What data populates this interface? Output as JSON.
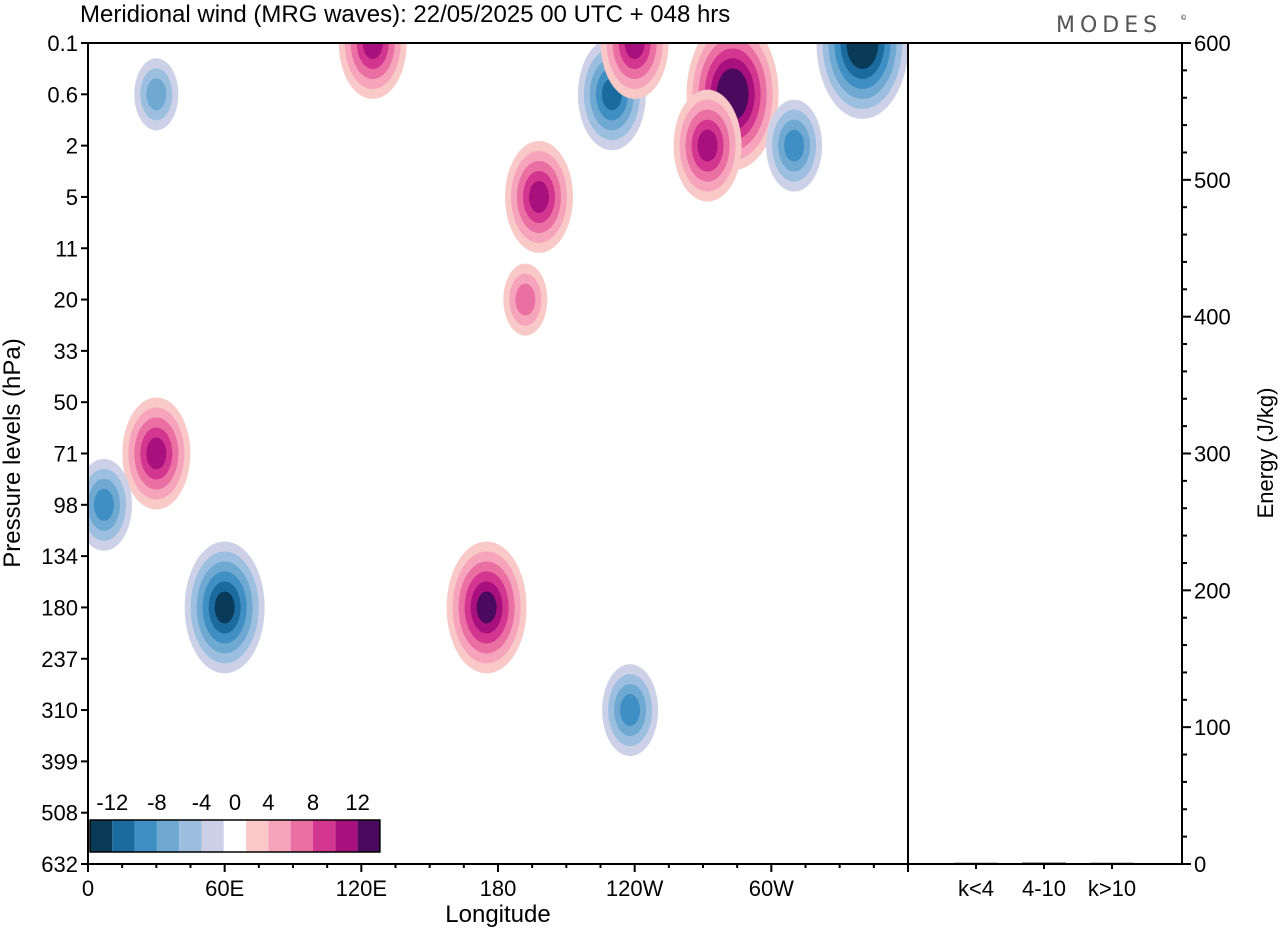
{
  "chart_data": [
    {
      "type": "heatmap",
      "title": "Meridional wind (MRG waves):  22/05/2025  00 UTC  + 048 hrs",
      "xlabel": "Longitude",
      "ylabel": "Pressure levels (hPa)",
      "x_ticks": [
        "0",
        "60E",
        "120E",
        "180",
        "120W",
        "60W"
      ],
      "x_tick_values": [
        0,
        60,
        120,
        180,
        240,
        300
      ],
      "xlim": [
        0,
        360
      ],
      "y_ticks": [
        "0.1",
        "0.6",
        "2",
        "5",
        "11",
        "20",
        "33",
        "50",
        "71",
        "98",
        "134",
        "180",
        "237",
        "310",
        "399",
        "508",
        "632"
      ],
      "colorbar": {
        "labels": [
          "-12",
          "-8",
          "-4",
          "0",
          "4",
          "8",
          "12"
        ],
        "label_values": [
          -12,
          -8,
          -4,
          0,
          4,
          8,
          12
        ],
        "levels": [
          -14,
          -12,
          -10,
          -8,
          -6,
          -4,
          -2,
          2,
          4,
          6,
          8,
          10,
          12,
          14
        ],
        "colors": [
          "#093a58",
          "#1c6b9e",
          "#3f8fc5",
          "#6fa8d1",
          "#9dbfdf",
          "#ccd1e7",
          "#ffffff",
          "#f8c9c6",
          "#f5a4bb",
          "#ea6fa3",
          "#d3368f",
          "#a8107d",
          "#4b0a5e"
        ]
      },
      "features": [
        {
          "lon": 30,
          "level": "71",
          "v": 10
        },
        {
          "lon": 60,
          "level": "180",
          "v": -12
        },
        {
          "lon": 7,
          "level": "98",
          "v": -8
        },
        {
          "lon": 175,
          "level": "180",
          "v": 12
        },
        {
          "lon": 238,
          "level": "310",
          "v": -8
        },
        {
          "lon": 283,
          "level": "0.6",
          "v": 14
        },
        {
          "lon": 340,
          "level": "0.1",
          "v": -14
        },
        {
          "lon": 230,
          "level": "0.6",
          "v": -10
        },
        {
          "lon": 272,
          "level": "2",
          "v": 10
        },
        {
          "lon": 198,
          "level": "5",
          "v": 10
        },
        {
          "lon": 125,
          "level": "0.1",
          "v": 10
        },
        {
          "lon": 240,
          "level": "0.1",
          "v": 10
        },
        {
          "lon": 310,
          "level": "2",
          "v": -8
        },
        {
          "lon": 192,
          "level": "20",
          "v": 6
        },
        {
          "lon": 30,
          "level": "0.6",
          "v": -6
        }
      ]
    },
    {
      "type": "bar",
      "ylabel": "Energy (J/kg)",
      "categories": [
        "k<4",
        "4-10",
        "k>10"
      ],
      "values": [
        0.5,
        1,
        0.3
      ],
      "ylim": [
        0,
        600
      ],
      "y_ticks": [
        "0",
        "100",
        "200",
        "300",
        "400",
        "500",
        "600"
      ]
    }
  ],
  "brand": "MODES",
  "brand_mark": "©"
}
